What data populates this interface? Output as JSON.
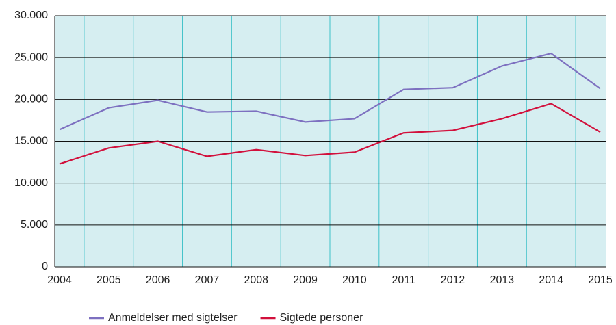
{
  "chart_data": {
    "type": "line",
    "categories": [
      "2004",
      "2005",
      "2006",
      "2007",
      "2008",
      "2009",
      "2010",
      "2011",
      "2012",
      "2013",
      "2014",
      "2015"
    ],
    "series": [
      {
        "name": "Anmeldelser med sigtelser",
        "color": "#7d70c0",
        "values": [
          16400,
          19000,
          19900,
          18500,
          18600,
          17300,
          17700,
          21200,
          21400,
          24000,
          25500,
          21300
        ]
      },
      {
        "name": "Sigtede personer",
        "color": "#d2103c",
        "values": [
          12300,
          14200,
          15000,
          13200,
          14000,
          13300,
          13700,
          16000,
          16300,
          17700,
          19500,
          16100
        ]
      }
    ],
    "ylim": [
      0,
      30000
    ],
    "yticks": [
      0,
      {
        "value": 5000,
        "label": "5.000"
      },
      {
        "value": 10000,
        "label": "10.000"
      },
      {
        "value": 15000,
        "label": "15.000"
      },
      {
        "value": 20000,
        "label": "20.000"
      },
      {
        "value": 25000,
        "label": "25.000"
      },
      {
        "value": 30000,
        "label": "30.000"
      }
    ],
    "grid": true,
    "legend": "bottom"
  }
}
